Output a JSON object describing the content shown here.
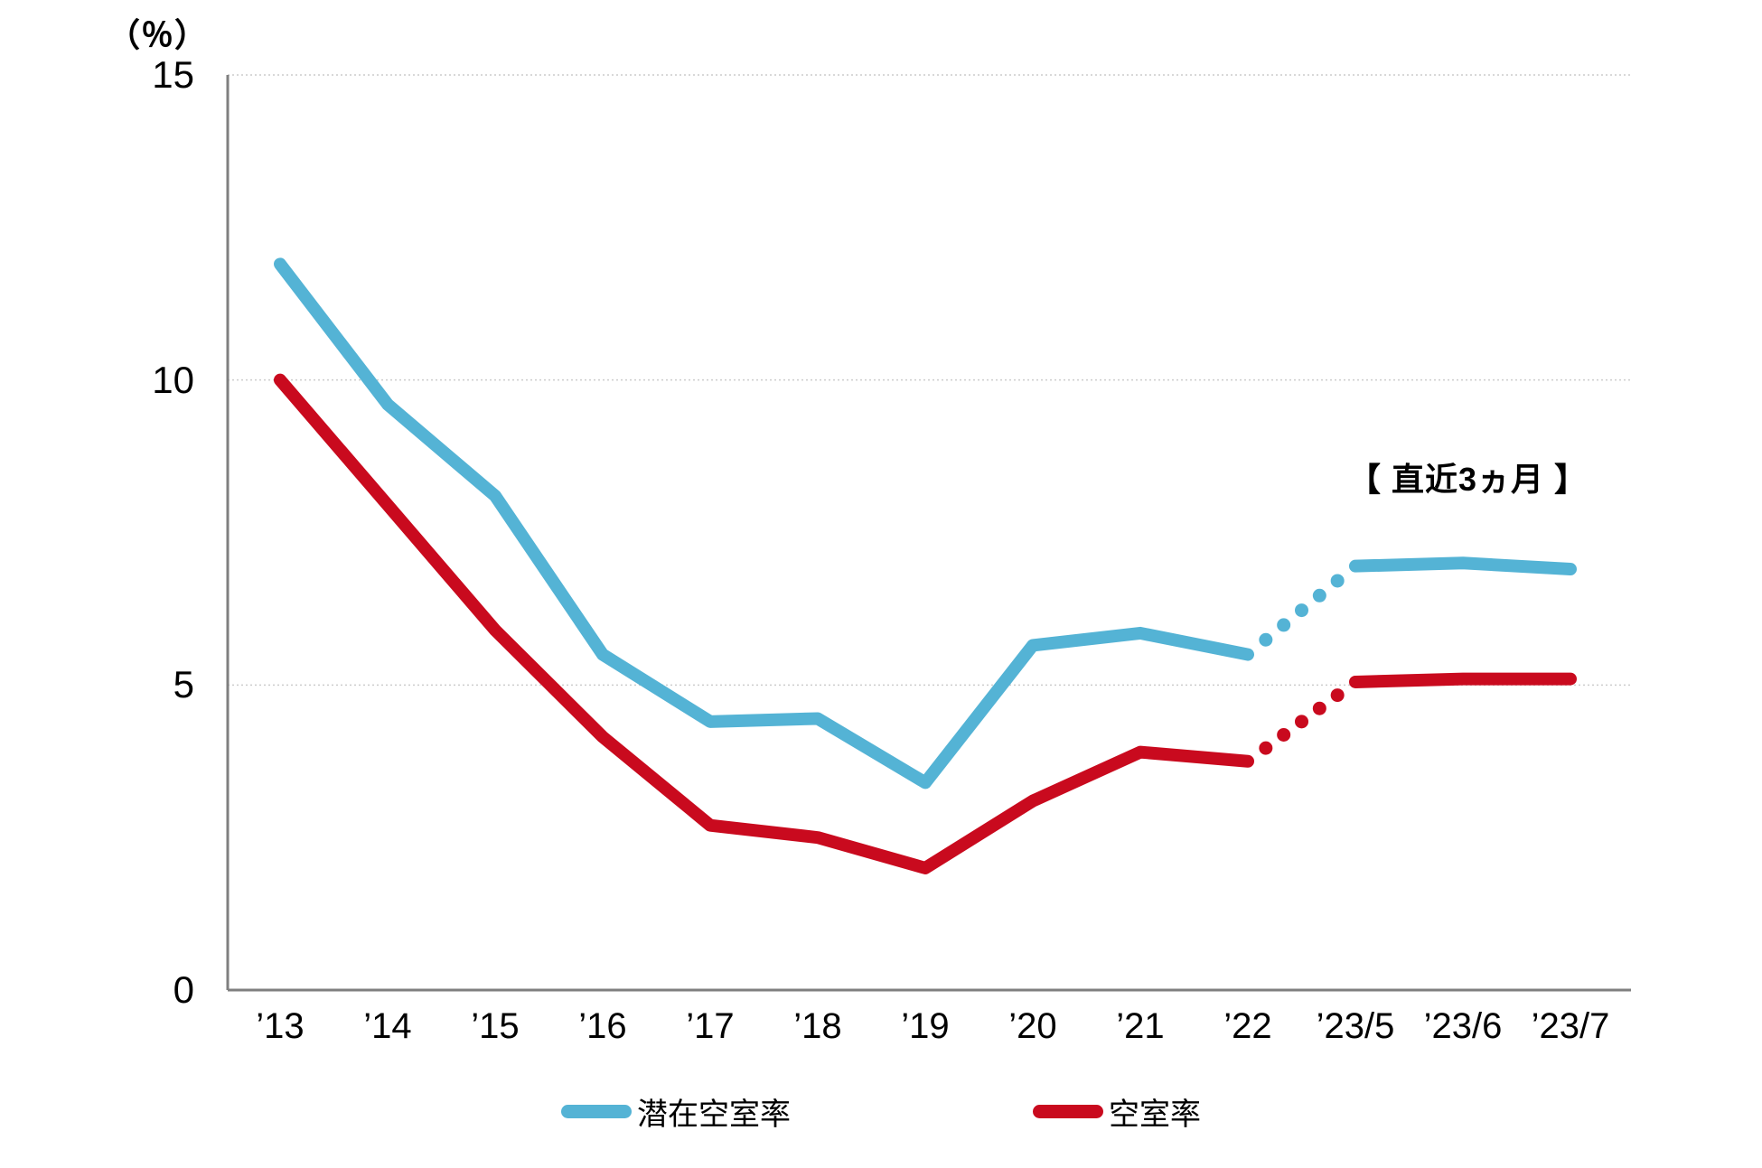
{
  "chart_data": {
    "type": "line",
    "title": "",
    "ylabel": "（％）",
    "xlabel": "",
    "ylim": [
      0,
      15
    ],
    "yticks": [
      0,
      5,
      10,
      15
    ],
    "grid": "horizontal-dotted",
    "legend_position": "bottom",
    "annotation": "【 直近3ヵ月 】",
    "categories": [
      "’13",
      "’14",
      "’15",
      "’16",
      "’17",
      "’18",
      "’19",
      "’20",
      "’21",
      "’22",
      "’23/5",
      "’23/6",
      "’23/7"
    ],
    "series": [
      {
        "name": "潜在空室率",
        "color": "#54b3d5",
        "values": [
          11.9,
          9.6,
          8.1,
          5.5,
          4.4,
          4.45,
          3.4,
          5.65,
          5.85,
          5.5,
          6.95,
          7.0,
          6.9
        ]
      },
      {
        "name": "空室率",
        "color": "#c90a1e",
        "values": [
          10.0,
          7.95,
          5.9,
          4.15,
          2.7,
          2.5,
          2.0,
          3.1,
          3.9,
          3.75,
          5.05,
          5.1,
          5.1
        ]
      }
    ],
    "projection": {
      "from_category": "’22",
      "to_category": "’23/5",
      "style": "dotted",
      "dot_count": 5
    }
  },
  "colors": {
    "grid": "#cccccc",
    "axis": "#7f7f7f",
    "text": "#000000"
  }
}
